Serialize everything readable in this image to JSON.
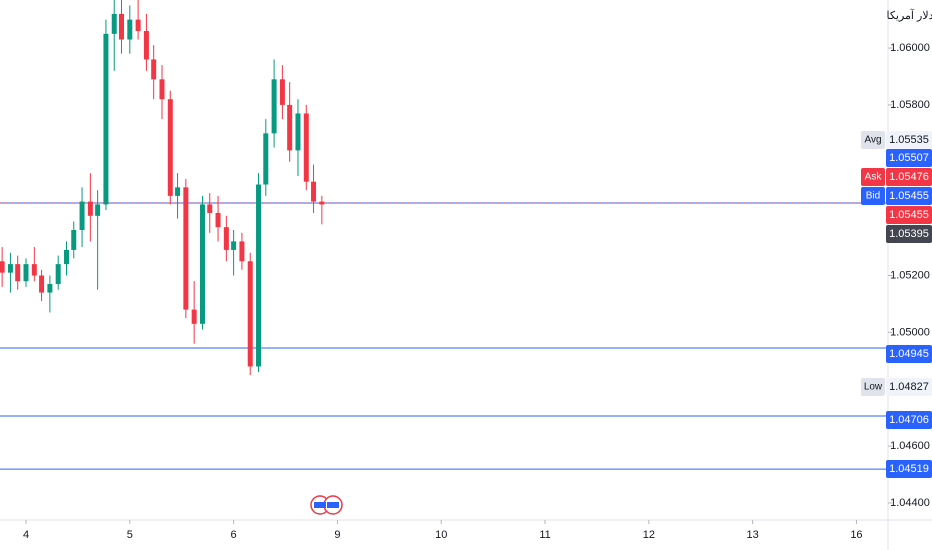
{
  "chart_data": {
    "type": "candlestick",
    "currency_label": "دلار آمریکا",
    "up_color": "#089981",
    "down_color": "#f23645",
    "grid": false,
    "xlim": [
      -0.2505,
      8.304
    ],
    "ylim": [
      1.0434,
      1.06169
    ],
    "xticks": [
      {
        "value": 0,
        "label": "4"
      },
      {
        "value": 1,
        "label": "5"
      },
      {
        "value": 2,
        "label": "6"
      },
      {
        "value": 3,
        "label": "9"
      },
      {
        "value": 4,
        "label": "10"
      },
      {
        "value": 5,
        "label": "11"
      },
      {
        "value": 6,
        "label": "12"
      },
      {
        "value": 7,
        "label": "13"
      },
      {
        "value": 8,
        "label": "16"
      }
    ],
    "yticks": [
      {
        "value": 1.06,
        "label": "1.06000"
      },
      {
        "value": 1.058,
        "label": "1.05800"
      },
      {
        "value": 1.052,
        "label": "1.05200"
      },
      {
        "value": 1.05,
        "label": "1.05000"
      },
      {
        "value": 1.046,
        "label": "1.04600"
      },
      {
        "value": 1.044,
        "label": "1.04400"
      }
    ],
    "x": [
      -0.23,
      -0.15,
      -0.08,
      0,
      0.08,
      0.15,
      0.23,
      0.31,
      0.39,
      0.46,
      0.54,
      0.62,
      0.69,
      0.77,
      0.85,
      0.92,
      1.0,
      1.08,
      1.16,
      1.23,
      1.31,
      1.39,
      1.46,
      1.54,
      1.62,
      1.7,
      1.77,
      1.85,
      1.93,
      2.0,
      2.08,
      2.16,
      2.24,
      2.31,
      2.39,
      2.47,
      2.54,
      2.62,
      2.7,
      2.77,
      2.85
    ],
    "open": [
      1.0525,
      1.0521,
      1.0524,
      1.0518,
      1.0524,
      1.052,
      1.0514,
      1.0517,
      1.0524,
      1.0529,
      1.0536,
      1.0546,
      1.0541,
      1.0545,
      1.0605,
      1.0612,
      1.0603,
      1.061,
      1.0606,
      1.0596,
      1.0589,
      1.0582,
      1.0548,
      1.0551,
      1.0508,
      1.0503,
      1.0545,
      1.0542,
      1.0537,
      1.0529,
      1.0532,
      1.0525,
      1.0488,
      1.0552,
      1.057,
      1.0589,
      1.058,
      1.0564,
      1.0577,
      1.0553,
      1.0546
    ],
    "high": [
      1.053,
      1.0528,
      1.0527,
      1.0526,
      1.053,
      1.0522,
      1.052,
      1.0527,
      1.0532,
      1.0539,
      1.0551,
      1.0556,
      1.055,
      1.061,
      1.0617,
      1.0617,
      1.0615,
      1.0617,
      1.0612,
      1.0601,
      1.0594,
      1.0585,
      1.0556,
      1.0554,
      1.0518,
      1.0548,
      1.0549,
      1.0548,
      1.0541,
      1.0536,
      1.0535,
      1.0528,
      1.0556,
      1.0575,
      1.0596,
      1.0594,
      1.0588,
      1.0582,
      1.058,
      1.0559,
      1.0548
    ],
    "low": [
      1.0516,
      1.0514,
      1.0515,
      1.0516,
      1.0518,
      1.0511,
      1.0507,
      1.0515,
      1.052,
      1.0526,
      1.053,
      1.0532,
      1.0515,
      1.0543,
      1.0592,
      1.0598,
      1.0598,
      1.0603,
      1.0592,
      1.0582,
      1.0575,
      1.0545,
      1.054,
      1.0505,
      1.0496,
      1.0501,
      1.0535,
      1.0532,
      1.0525,
      1.052,
      1.0522,
      1.0485,
      1.0486,
      1.0548,
      1.0565,
      1.0575,
      1.056,
      1.0555,
      1.055,
      1.0542,
      1.0538
    ],
    "close": [
      1.0521,
      1.0524,
      1.0518,
      1.0524,
      1.052,
      1.0514,
      1.0517,
      1.0524,
      1.0529,
      1.0536,
      1.0546,
      1.0541,
      1.0545,
      1.0605,
      1.0612,
      1.0603,
      1.061,
      1.0606,
      1.0596,
      1.0589,
      1.0582,
      1.0548,
      1.0551,
      1.0508,
      1.0503,
      1.0545,
      1.0542,
      1.0537,
      1.0529,
      1.0532,
      1.0525,
      1.0488,
      1.0552,
      1.057,
      1.0589,
      1.058,
      1.0564,
      1.0577,
      1.0553,
      1.0546,
      1.0545
    ],
    "lines": [
      {
        "value": 1.05455,
        "color": "#2962ff",
        "style": "solid"
      },
      {
        "value": 1.05455,
        "color": "#f23645",
        "style": "dotted"
      },
      {
        "value": 1.04945,
        "color": "#2962ff",
        "style": "solid"
      },
      {
        "value": 1.04706,
        "color": "#2962ff",
        "style": "solid"
      },
      {
        "value": 1.04519,
        "color": "#2962ff",
        "style": "solid"
      }
    ],
    "tags": [
      {
        "name": "Avg",
        "value": 1.05535,
        "color": "#e0e3eb"
      },
      {
        "value": 1.05507,
        "color": "#2962ff"
      },
      {
        "name": "Ask",
        "value": 1.05476,
        "color": "#f23645"
      },
      {
        "name": "Bid",
        "value": 1.05455,
        "color": "#2962ff"
      },
      {
        "value": 1.05455,
        "color": "#f23645"
      },
      {
        "value": 1.05395,
        "color": "#434651"
      },
      {
        "value": 1.04945,
        "color": "#2962ff"
      },
      {
        "name": "Low",
        "value": 1.04827,
        "color": "#e0e3eb"
      },
      {
        "value": 1.04706,
        "color": "#2962ff"
      },
      {
        "value": 1.04519,
        "color": "#2962ff"
      }
    ]
  }
}
